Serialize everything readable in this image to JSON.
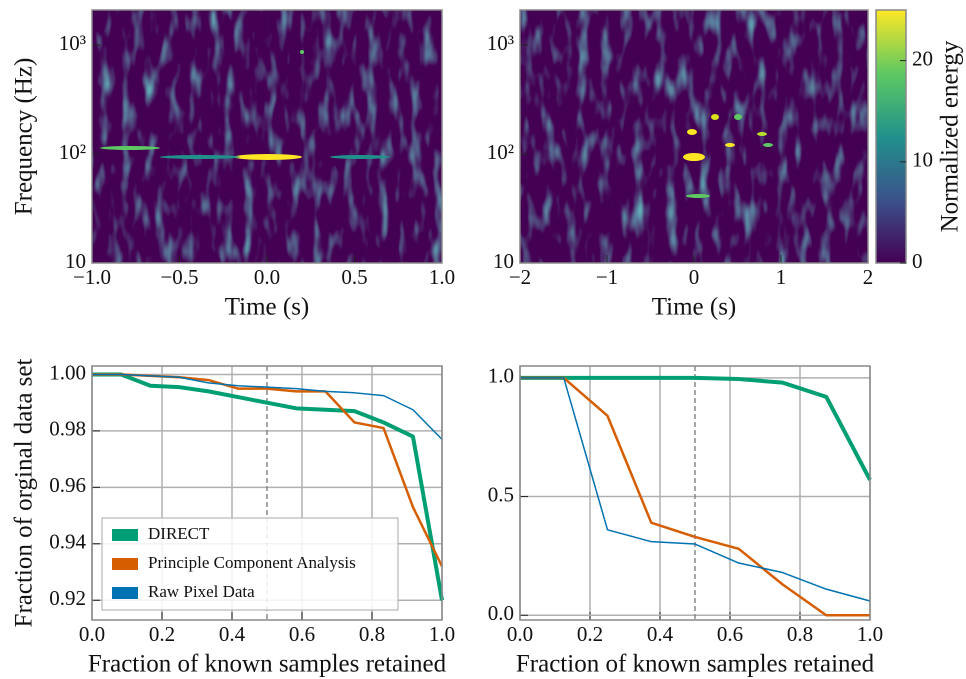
{
  "chart_data": [
    {
      "type": "heatmap",
      "xlabel": "Time (s)",
      "ylabel": "Frequency (Hz)",
      "xlim": [
        -1,
        1
      ],
      "xticks": [
        {
          "value": -1,
          "label": "−1.0"
        },
        {
          "value": -0.5,
          "label": "−0.5"
        },
        {
          "value": 0,
          "label": "0.0"
        },
        0.5,
        {
          "value": 1,
          "label": "1.0"
        }
      ],
      "ylim": [
        10,
        2100
      ],
      "ylog": true,
      "yticks": [
        10,
        {
          "value": 100,
          "label": "10²"
        },
        {
          "value": 1000,
          "label": "10³"
        }
      ]
    },
    {
      "type": "heatmap",
      "xlabel": "Time (s)",
      "xlim": [
        -2,
        2
      ],
      "xticks": [
        {
          "value": -2,
          "label": "−2"
        },
        {
          "value": -1,
          "label": "−1"
        },
        0,
        1,
        2
      ],
      "ylim": [
        10,
        2100
      ],
      "ylog": true,
      "yticks": [
        10,
        {
          "value": 100,
          "label": "10²"
        },
        {
          "value": 1000,
          "label": "10³"
        }
      ],
      "colorbar": {
        "label": "Normalized energy",
        "lim": [
          0,
          25
        ],
        "ticks": [
          0,
          10,
          20
        ],
        "colors": [
          "#440154",
          "#3b528b",
          "#21918c",
          "#5ec962",
          "#fde725"
        ]
      }
    },
    {
      "type": "line",
      "xlabel": "Fraction of known samples retained",
      "ylabel": "Fraction of orginal data set",
      "xlim": [
        0,
        1
      ],
      "xticks": [
        {
          "value": 0,
          "label": "0.0"
        },
        0.2,
        0.4,
        0.6,
        0.8,
        {
          "value": 1,
          "label": "1.0"
        }
      ],
      "ylim": [
        0.913,
        1.003
      ],
      "yticks": [
        0.92,
        0.94,
        0.96,
        0.98,
        {
          "value": 1,
          "label": "1.00"
        }
      ],
      "grid": true,
      "vline": 0.5,
      "legend": "lower left",
      "x": [
        0,
        0.083,
        0.167,
        0.25,
        0.333,
        0.417,
        0.5,
        0.583,
        0.667,
        0.75,
        0.833,
        0.917,
        1
      ],
      "series": [
        {
          "name": "DIRECT",
          "color": "#009e73",
          "width": 4,
          "values": [
            1,
            1,
            0.996,
            0.9955,
            0.994,
            0.992,
            0.99,
            0.988,
            0.9875,
            0.987,
            0.983,
            0.978,
            0.92
          ]
        },
        {
          "name": "Principle Component Analysis",
          "color": "#d55e00",
          "width": 2.5,
          "values": [
            1,
            1,
            0.9995,
            0.999,
            0.998,
            0.995,
            0.995,
            0.994,
            0.994,
            0.983,
            0.981,
            0.953,
            0.932
          ]
        },
        {
          "name": "Raw Pixel Data",
          "color": "#0072b2",
          "width": 1.5,
          "values": [
            1,
            1,
            0.9995,
            0.999,
            0.997,
            0.996,
            0.9955,
            0.995,
            0.994,
            0.9935,
            0.9925,
            0.9875,
            0.977
          ]
        }
      ]
    },
    {
      "type": "line",
      "xlabel": "Fraction of known samples retained",
      "xlim": [
        0,
        1
      ],
      "xticks": [
        {
          "value": 0,
          "label": "0.0"
        },
        0.2,
        0.4,
        0.6,
        0.8,
        {
          "value": 1,
          "label": "1.0"
        }
      ],
      "ylim": [
        -0.02,
        1.05
      ],
      "yticks": [
        {
          "value": 0,
          "label": "0.0"
        },
        0.5,
        {
          "value": 1,
          "label": "1.0"
        }
      ],
      "grid": true,
      "vline": 0.5,
      "x": [
        0,
        0.125,
        0.25,
        0.375,
        0.5,
        0.625,
        0.75,
        0.875,
        1
      ],
      "series": [
        {
          "color": "#009e73",
          "width": 4,
          "values": [
            1,
            1,
            1,
            1,
            1,
            0.995,
            0.98,
            0.92,
            0.57
          ]
        },
        {
          "color": "#d55e00",
          "width": 2.5,
          "values": [
            1,
            1,
            0.84,
            0.39,
            0.33,
            0.28,
            0.13,
            0,
            0
          ]
        },
        {
          "color": "#0072b2",
          "width": 1.5,
          "values": [
            1,
            1,
            0.36,
            0.31,
            0.3,
            0.22,
            0.18,
            0.11,
            0.06
          ]
        }
      ]
    }
  ]
}
